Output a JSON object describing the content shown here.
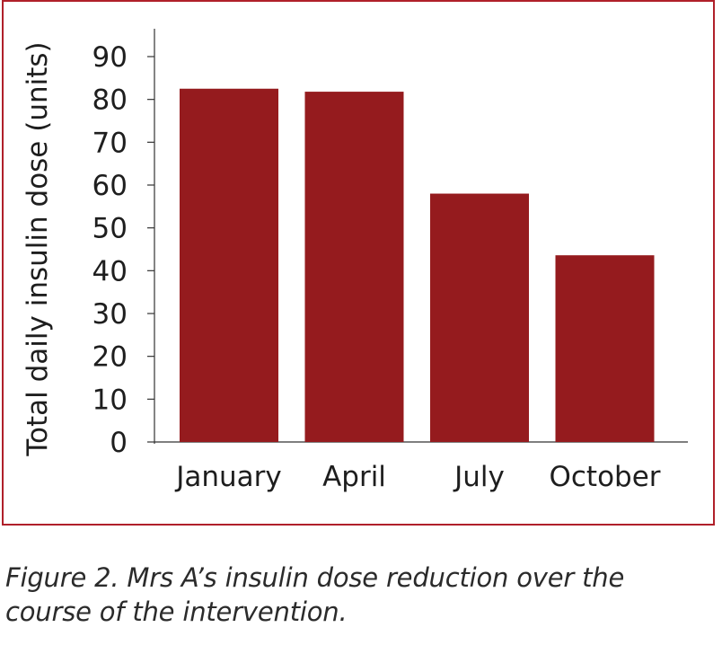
{
  "chart_data": {
    "type": "bar",
    "categories": [
      "January",
      "April",
      "July",
      "October"
    ],
    "values": [
      82.5,
      81.8,
      58,
      43.6
    ],
    "title": "",
    "xlabel": "",
    "ylabel": "Total daily insulin dose (units)",
    "ylim": [
      0,
      90
    ],
    "yticks": [
      0,
      10,
      20,
      30,
      40,
      50,
      60,
      70,
      80,
      90
    ],
    "grid": false,
    "legend": "none",
    "bar_color": "#951b1e",
    "frame_color": "#b0202a"
  },
  "caption": "Figure 2. Mrs A’s insulin dose reduction over the course of the intervention."
}
